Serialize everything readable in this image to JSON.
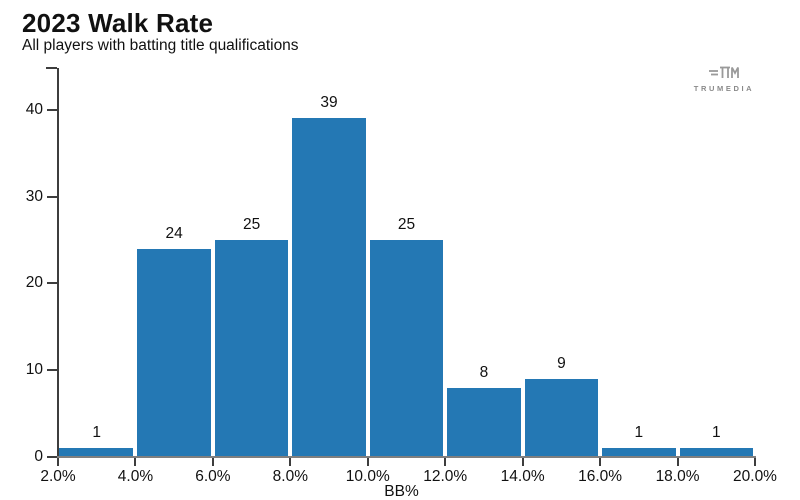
{
  "header": {
    "title": "2023 Walk Rate",
    "subtitle": "All players with batting title qualifications"
  },
  "branding": {
    "logo_text": "TRUMEDIA",
    "logo_color": "#9a9a9a"
  },
  "chart_data": {
    "type": "bar",
    "subtype": "histogram",
    "title": "2023 Walk Rate",
    "subtitle": "All players with batting title qualifications",
    "xlabel": "BB%",
    "ylabel": "",
    "bin_edges_pct": [
      2,
      4,
      6,
      8,
      10,
      12,
      14,
      16,
      18,
      20
    ],
    "values": [
      1,
      24,
      25,
      39,
      25,
      8,
      9,
      1,
      1
    ],
    "x_tick_labels": [
      "2.0%",
      "4.0%",
      "6.0%",
      "8.0%",
      "10.0%",
      "12.0%",
      "14.0%",
      "16.0%",
      "18.0%",
      "20.0%"
    ],
    "y_ticks": [
      0,
      10,
      20,
      30,
      40
    ],
    "xlim": [
      2,
      20
    ],
    "ylim": [
      0,
      44.8
    ],
    "bar_color": "#2478b4",
    "axis_color": "#3d3d3d",
    "baseline_color": "#7f7f7f",
    "grid": false,
    "legend_position": "none",
    "value_labels_shown": true
  }
}
